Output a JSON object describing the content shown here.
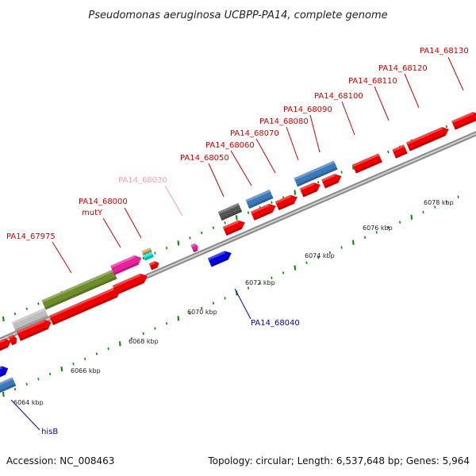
{
  "header": {
    "title": "Pseudomonas aeruginosa UCBPP-PA14, complete genome"
  },
  "footer": {
    "accession": "Accession: NC_008463",
    "topology": "Topology: circular; Length: 6,537,648 bp; Genes: 5,964"
  },
  "colors": {
    "label_red": "#cc0000",
    "label_pink": "#f2a0c0",
    "label_blue": "#0000bb",
    "feature_red": "#ee0000",
    "feature_blue": "#0000dd",
    "feature_steel": "#3a78b8",
    "feature_olive": "#6e8c2a",
    "feature_magenta": "#e8209a",
    "feature_gray": "#bdbdbd",
    "feature_darkgray": "#555555",
    "feature_cyan": "#00e0e0",
    "feature_tan": "#c8a060",
    "tick_green": "#008800"
  },
  "gene_labels": [
    {
      "text": "PA14_67975",
      "color": "red"
    },
    {
      "text": "PA14_68000",
      "color": "red"
    },
    {
      "text": "mutY",
      "color": "red"
    },
    {
      "text": "PA14_68030",
      "color": "pink"
    },
    {
      "text": "PA14_68050",
      "color": "red"
    },
    {
      "text": "PA14_68060",
      "color": "red"
    },
    {
      "text": "PA14_68070",
      "color": "red"
    },
    {
      "text": "PA14_68080",
      "color": "red"
    },
    {
      "text": "PA14_68090",
      "color": "red"
    },
    {
      "text": "PA14_68100",
      "color": "red"
    },
    {
      "text": "PA14_68110",
      "color": "red"
    },
    {
      "text": "PA14_68120",
      "color": "red"
    },
    {
      "text": "PA14_68130",
      "color": "red"
    },
    {
      "text": "PA14_68040",
      "color": "blue"
    },
    {
      "text": "hisB",
      "color": "blue"
    }
  ],
  "scale_labels": [
    "6064 kbp",
    "6066 kbp",
    "6068 kbp",
    "6070 kbp",
    "6072 kbp",
    "6074 kbp",
    "6076 kbp",
    "6078 kbp"
  ]
}
